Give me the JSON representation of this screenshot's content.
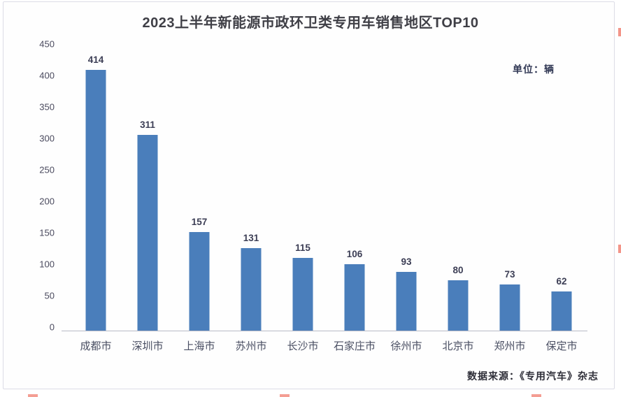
{
  "chart_data": {
    "type": "bar",
    "title": "2023上半年新能源市政环卫类专用车销售地区TOP10",
    "unit_label": "单位：辆",
    "categories": [
      "成都市",
      "深圳市",
      "上海市",
      "苏州市",
      "长沙市",
      "石家庄市",
      "徐州市",
      "北京市",
      "郑州市",
      "保定市"
    ],
    "values": [
      414,
      311,
      157,
      131,
      115,
      106,
      93,
      80,
      73,
      62
    ],
    "yticks": [
      0,
      50,
      100,
      150,
      200,
      250,
      300,
      350,
      400,
      450
    ],
    "ylim": [
      0,
      450
    ],
    "grid": false,
    "legend_position": "none",
    "bar_color": "#4a7ebb",
    "source": "数据来源：《专用汽车》杂志"
  }
}
